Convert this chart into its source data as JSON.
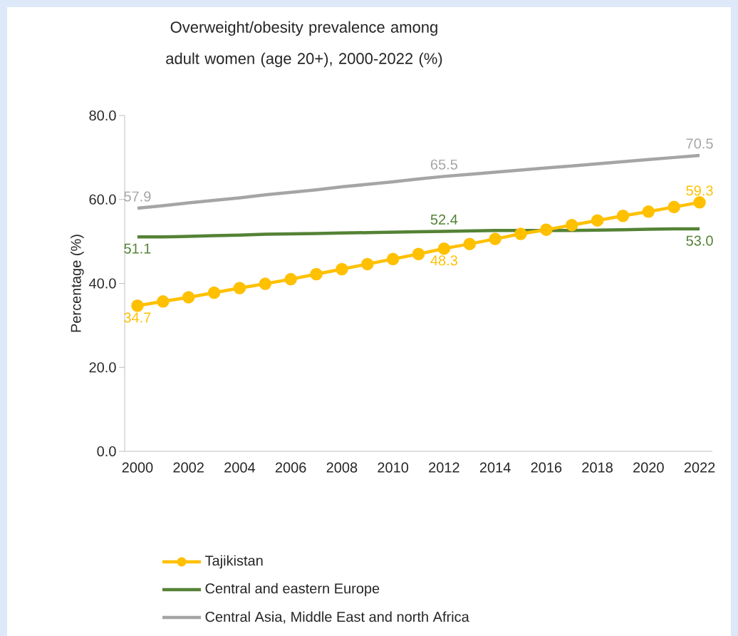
{
  "chart_data": {
    "type": "line",
    "title": "Overweight/obesity prevalence among adult women (age 20+), 2000-2022 (%)",
    "ylabel": "Percentage (%)",
    "categories": [
      "2000",
      null,
      "2002",
      null,
      "2004",
      null,
      "2006",
      null,
      "2008",
      null,
      "2010",
      null,
      "2012",
      null,
      "2014",
      null,
      "2016",
      null,
      "2018",
      null,
      "2020",
      null,
      "2022"
    ],
    "ylim": [
      0,
      80
    ],
    "yticks": [
      {
        "value": 0,
        "label": "0.0"
      },
      {
        "value": 20,
        "label": "20.0"
      },
      {
        "value": 40,
        "label": "40.0"
      },
      {
        "value": 60,
        "label": "60.0"
      },
      {
        "value": 80,
        "label": "80.0"
      }
    ],
    "grid": false,
    "legend": "bottom",
    "series": [
      {
        "name": "Tajikistan",
        "color": "#ffc000",
        "marker": "circle",
        "values": [
          34.7,
          35.7,
          36.7,
          37.8,
          38.9,
          39.9,
          41.0,
          42.2,
          43.4,
          44.6,
          45.8,
          47.0,
          48.3,
          49.4,
          50.6,
          51.8,
          52.8,
          53.9,
          55.0,
          56.1,
          57.1,
          58.2,
          59.3
        ],
        "value_labels": [
          "34.7",
          null,
          null,
          null,
          null,
          null,
          null,
          null,
          null,
          null,
          null,
          null,
          "48.3",
          null,
          null,
          null,
          null,
          null,
          null,
          null,
          null,
          null,
          "59.3"
        ]
      },
      {
        "name": "Central and eastern Europe",
        "color": "#548235",
        "marker": "none",
        "values": [
          51.1,
          51.1,
          51.2,
          51.4,
          51.5,
          51.7,
          51.8,
          51.9,
          52.0,
          52.1,
          52.2,
          52.3,
          52.4,
          52.5,
          52.6,
          null,
          null,
          52.6,
          52.7,
          52.8,
          52.9,
          53.0,
          53.0
        ],
        "value_labels": [
          "51.1",
          null,
          null,
          null,
          null,
          null,
          null,
          null,
          null,
          null,
          null,
          null,
          "52.4",
          null,
          null,
          null,
          null,
          null,
          null,
          null,
          null,
          null,
          "53.0"
        ]
      },
      {
        "name": "Central Asia, Middle East and north Africa",
        "color": "#a5a5a5",
        "marker": "none",
        "values": [
          57.9,
          58.5,
          59.2,
          59.8,
          60.4,
          61.1,
          61.7,
          62.3,
          63.0,
          63.6,
          64.2,
          64.9,
          65.5,
          66.0,
          66.5,
          67.0,
          67.5,
          68.0,
          68.5,
          69.0,
          69.5,
          70.0,
          70.5
        ],
        "value_labels": [
          "57.9",
          null,
          null,
          null,
          null,
          null,
          null,
          null,
          null,
          null,
          null,
          null,
          "65.5",
          null,
          null,
          null,
          null,
          null,
          null,
          null,
          null,
          null,
          "70.5"
        ]
      }
    ]
  }
}
